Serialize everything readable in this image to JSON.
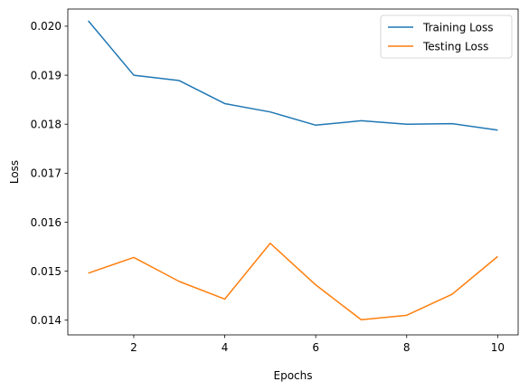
{
  "chart_data": {
    "type": "line",
    "title": "",
    "xlabel": "Epochs",
    "ylabel": "Loss",
    "x": [
      1,
      2,
      3,
      4,
      5,
      6,
      7,
      8,
      9,
      10
    ],
    "xlim": [
      0.55,
      10.45
    ],
    "ylim": [
      0.0137,
      0.02035
    ],
    "xticks": [
      2,
      4,
      6,
      8,
      10
    ],
    "xtick_labels": [
      "2",
      "4",
      "6",
      "8",
      "10"
    ],
    "yticks": [
      0.014,
      0.015,
      0.016,
      0.017,
      0.018,
      0.019,
      0.02
    ],
    "ytick_labels": [
      "0.014",
      "0.015",
      "0.016",
      "0.017",
      "0.018",
      "0.019",
      "0.020"
    ],
    "grid": false,
    "legend_position": "top-right",
    "series": [
      {
        "name": "Training Loss",
        "color": "#1f77b4",
        "values": [
          0.02011,
          0.019,
          0.01889,
          0.01842,
          0.01825,
          0.01798,
          0.01807,
          0.018,
          0.01801,
          0.01788
        ]
      },
      {
        "name": "Testing Loss",
        "color": "#ff7f0e",
        "values": [
          0.01496,
          0.01528,
          0.01479,
          0.01443,
          0.01557,
          0.01472,
          0.01401,
          0.0141,
          0.01453,
          0.0153
        ]
      }
    ]
  }
}
